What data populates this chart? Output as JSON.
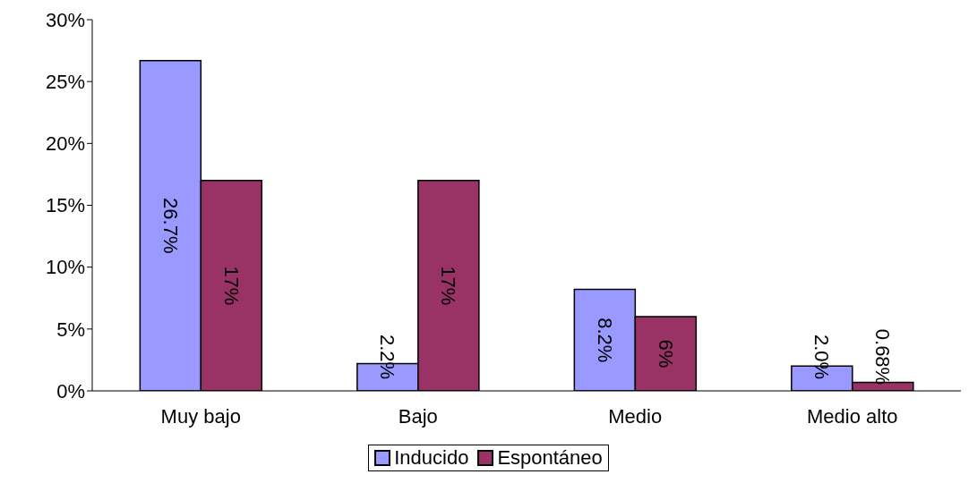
{
  "chart_data": {
    "type": "bar",
    "categories": [
      "Muy bajo",
      "Bajo",
      "Medio",
      "Medio alto"
    ],
    "series": [
      {
        "name": "Inducido",
        "color": "#9999ff",
        "values": [
          26.7,
          2.2,
          8.2,
          2.0
        ],
        "value_labels": [
          "26.7%",
          "2.2%",
          "8.2%",
          "2.0%"
        ]
      },
      {
        "name": "Espontáneo",
        "color": "#993366",
        "values": [
          17,
          17,
          6,
          0.68
        ],
        "value_labels": [
          "17%",
          "17%",
          "6%",
          "0.68%"
        ]
      }
    ],
    "ylim": [
      0,
      30
    ],
    "yticks": [
      {
        "value": 0,
        "label": "0%"
      },
      {
        "value": 5,
        "label": "5%"
      },
      {
        "value": 10,
        "label": "10%"
      },
      {
        "value": 15,
        "label": "15%"
      },
      {
        "value": 20,
        "label": "20%"
      },
      {
        "value": 25,
        "label": "25%"
      },
      {
        "value": 30,
        "label": "30%"
      }
    ],
    "grid": false,
    "legend": "bottom"
  }
}
